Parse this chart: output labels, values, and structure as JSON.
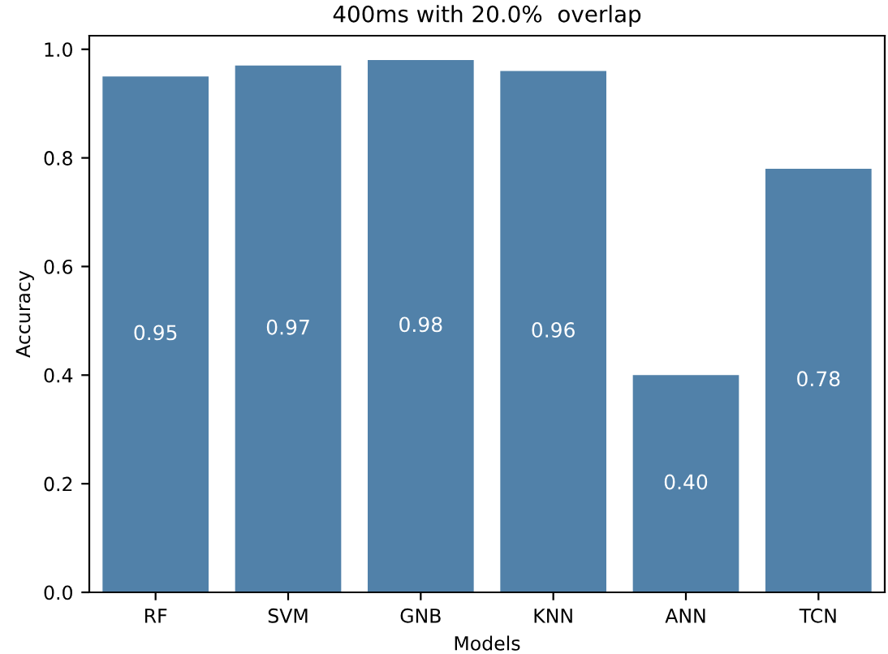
{
  "chart_data": {
    "type": "bar",
    "title": "400ms with 20.0%  overlap",
    "xlabel": "Models",
    "ylabel": "Accuracy",
    "categories": [
      "RF",
      "SVM",
      "GNB",
      "KNN",
      "ANN",
      "TCN"
    ],
    "values": [
      0.95,
      0.97,
      0.98,
      0.96,
      0.4,
      0.78
    ],
    "color": "#5181a9",
    "value_labels": [
      "0.95",
      "0.97",
      "0.98",
      "0.96",
      "0.40",
      "0.78"
    ],
    "ylim": [
      0.0,
      1.025
    ],
    "yticks": [
      {
        "value": 0,
        "label": "0.0"
      },
      0.2,
      0.4,
      0.6,
      0.8,
      {
        "value": 1,
        "label": "1.0"
      }
    ],
    "grid": false,
    "legend": false
  }
}
